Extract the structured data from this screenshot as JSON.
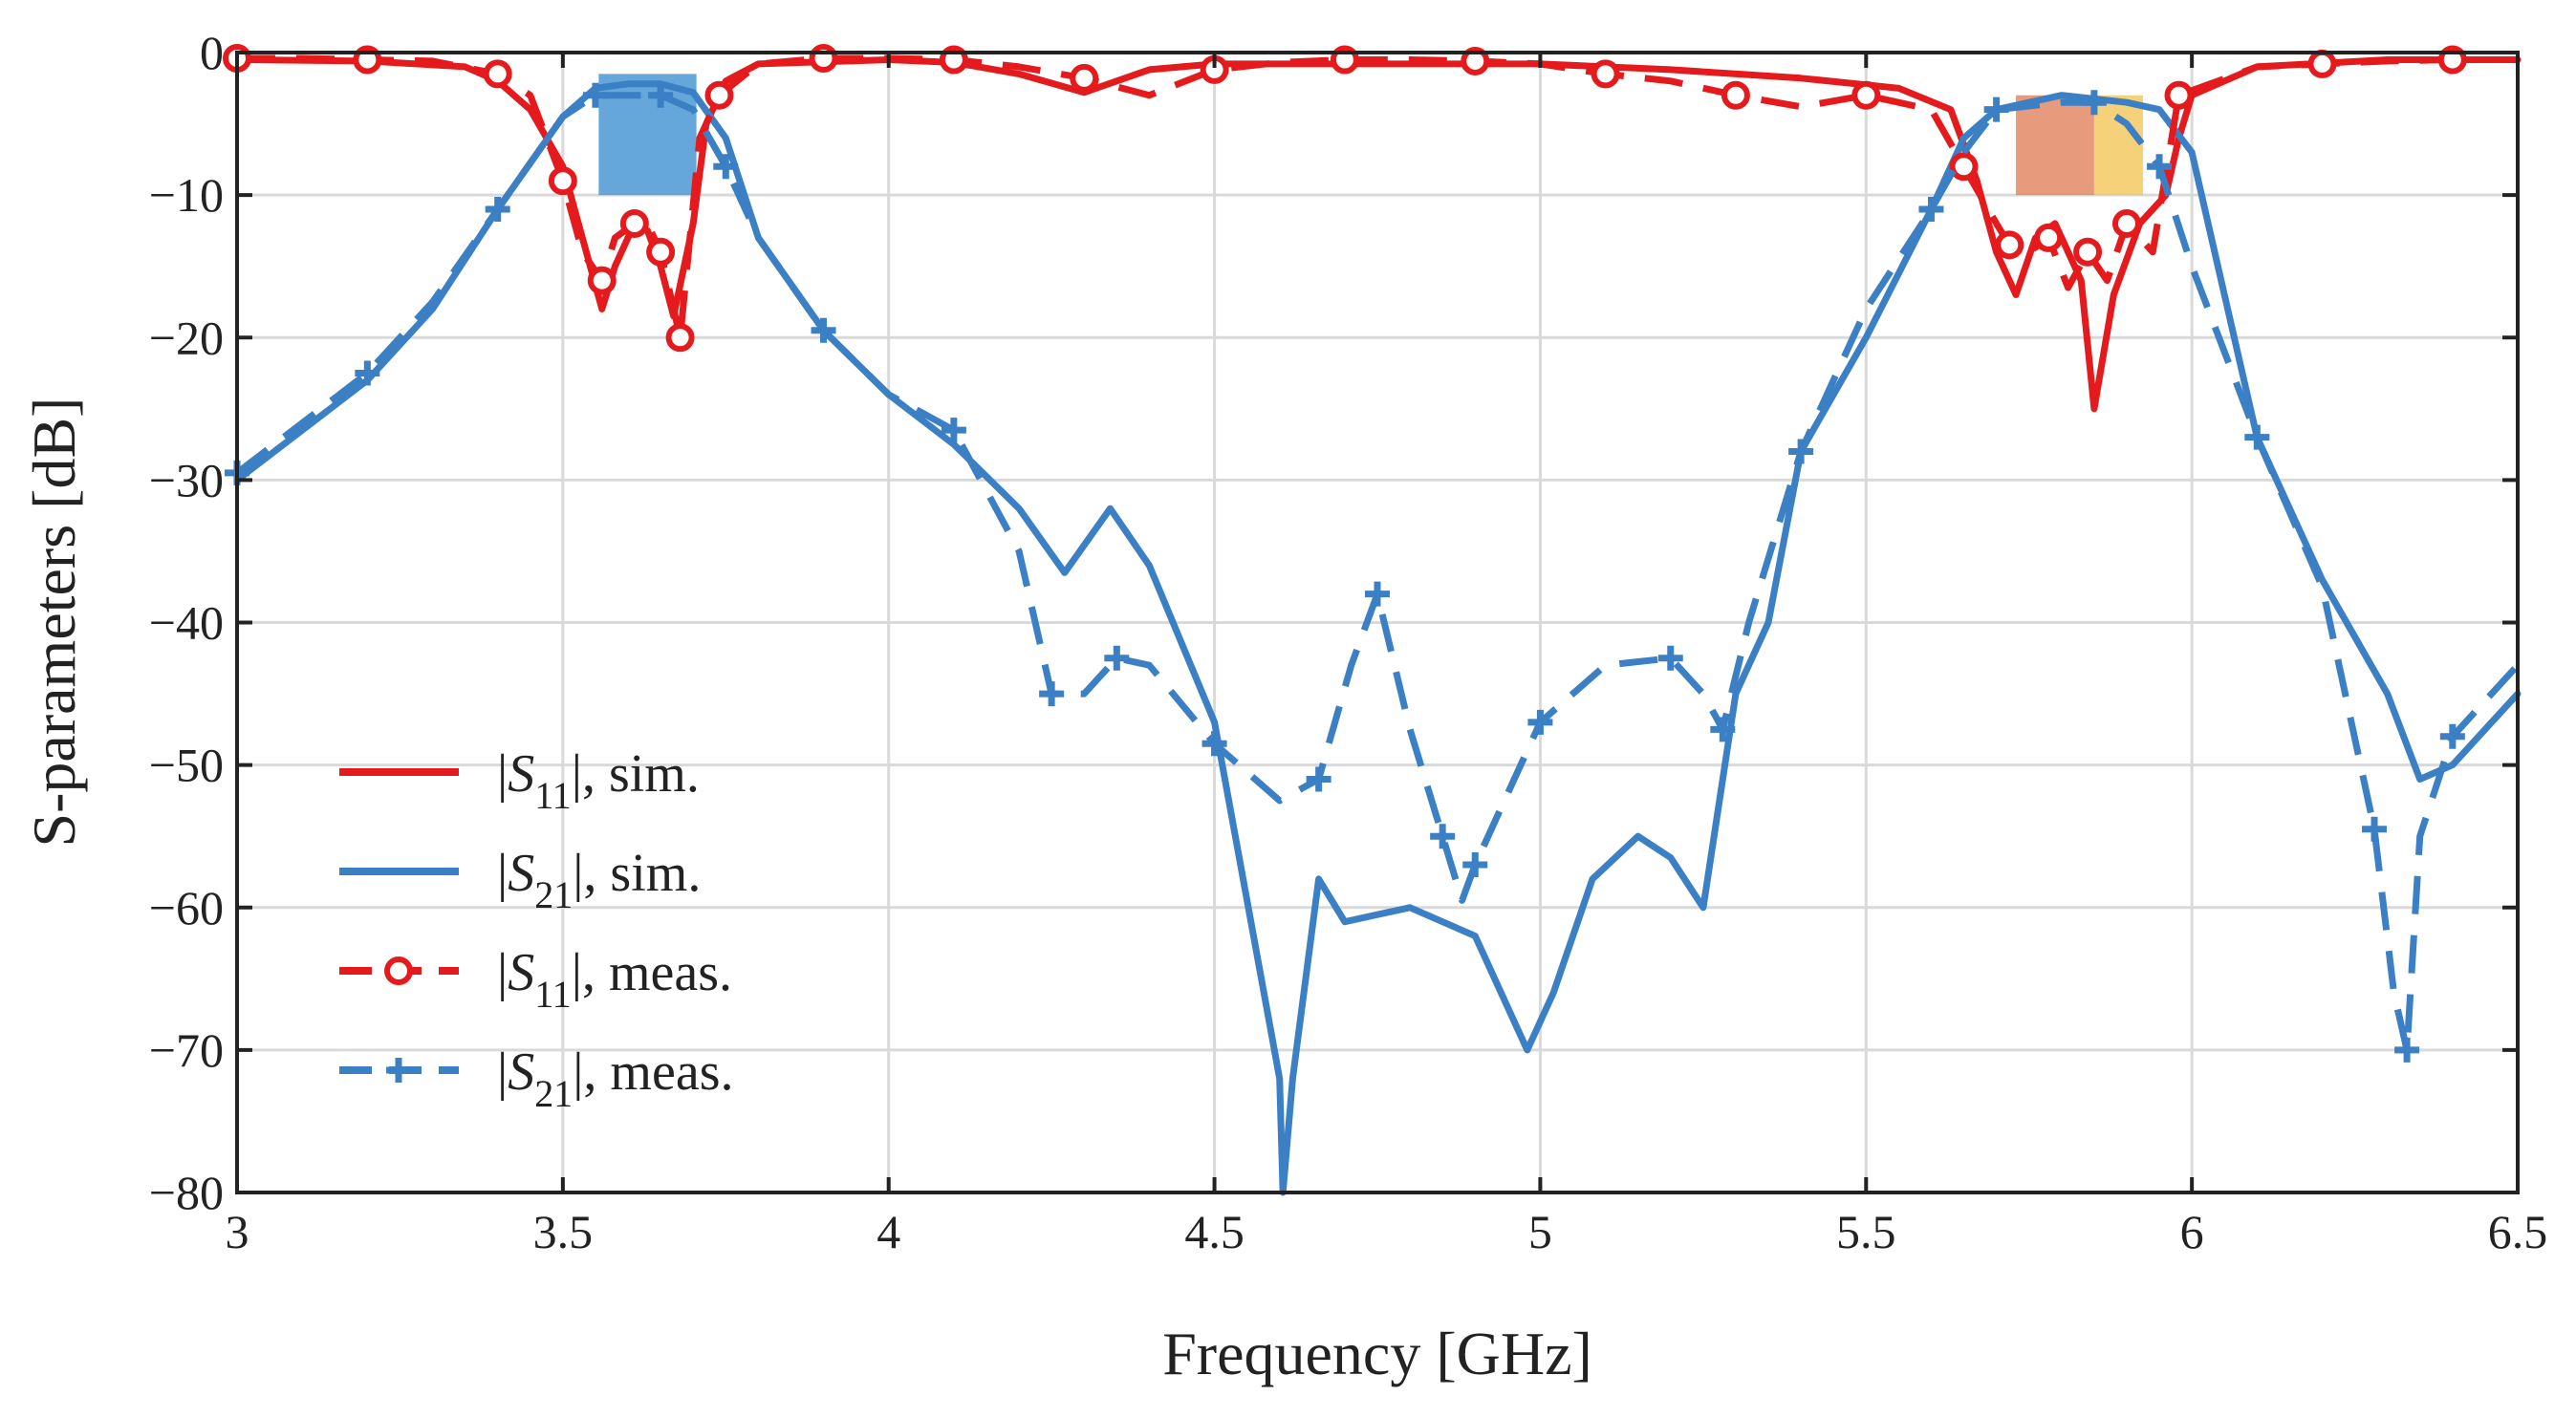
{
  "chart_data": {
    "type": "line",
    "title": "",
    "xlabel": "Frequency [GHz]",
    "ylabel": "S-parameters [dB]",
    "xlim": [
      3,
      6.5
    ],
    "ylim": [
      -80,
      0
    ],
    "x_ticks": [
      3,
      3.5,
      4,
      4.5,
      5,
      5.5,
      6,
      6.5
    ],
    "x_tick_labels": [
      "3",
      "3.5",
      "4",
      "4.5",
      "5",
      "5.5",
      "6",
      "6.5"
    ],
    "y_ticks": [
      0,
      -10,
      -20,
      -30,
      -40,
      -50,
      -60,
      -70,
      -80
    ],
    "y_tick_labels": [
      "0",
      "−10",
      "−20",
      "−30",
      "−40",
      "−50",
      "−60",
      "−70",
      "−80"
    ],
    "grid": true,
    "legend_position": "left-bottom",
    "shaded_bands": [
      {
        "x": [
          3.555,
          3.705
        ],
        "y": [
          -10,
          -1.5
        ],
        "color": "#4a98d3",
        "opacity": 0.85
      },
      {
        "x": [
          5.73,
          5.85
        ],
        "y": [
          -10,
          -3
        ],
        "color": "#e07a50",
        "opacity": 0.75
      },
      {
        "x": [
          5.85,
          5.925
        ],
        "y": [
          -10,
          -3
        ],
        "color": "#f2c14e",
        "opacity": 0.75
      }
    ],
    "series": [
      {
        "name": "|S11|, sim.",
        "legend_base": "S",
        "legend_sub": "11",
        "legend_suffix": ", sim.",
        "color": "#e41a1c",
        "style": "solid",
        "marker": "none",
        "points": [
          [
            3,
            -0.5
          ],
          [
            3.2,
            -0.6
          ],
          [
            3.35,
            -1
          ],
          [
            3.4,
            -2
          ],
          [
            3.45,
            -4
          ],
          [
            3.5,
            -8
          ],
          [
            3.53,
            -13
          ],
          [
            3.56,
            -18
          ],
          [
            3.58,
            -15
          ],
          [
            3.61,
            -12
          ],
          [
            3.63,
            -12.5
          ],
          [
            3.65,
            -15
          ],
          [
            3.67,
            -18.5
          ],
          [
            3.7,
            -12
          ],
          [
            3.72,
            -5
          ],
          [
            3.75,
            -2
          ],
          [
            3.8,
            -0.8
          ],
          [
            4.0,
            -0.5
          ],
          [
            4.1,
            -0.7
          ],
          [
            4.2,
            -1.5
          ],
          [
            4.3,
            -2.8
          ],
          [
            4.35,
            -2
          ],
          [
            4.4,
            -1.2
          ],
          [
            4.5,
            -0.8
          ],
          [
            5.0,
            -0.8
          ],
          [
            5.2,
            -1.2
          ],
          [
            5.4,
            -1.8
          ],
          [
            5.55,
            -2.5
          ],
          [
            5.63,
            -4
          ],
          [
            5.67,
            -9
          ],
          [
            5.7,
            -14
          ],
          [
            5.73,
            -17
          ],
          [
            5.76,
            -13
          ],
          [
            5.79,
            -12
          ],
          [
            5.83,
            -16
          ],
          [
            5.85,
            -25
          ],
          [
            5.88,
            -17
          ],
          [
            5.92,
            -12
          ],
          [
            5.96,
            -10
          ],
          [
            5.98,
            -6
          ],
          [
            6.0,
            -3
          ],
          [
            6.1,
            -1
          ],
          [
            6.3,
            -0.5
          ],
          [
            6.5,
            -0.5
          ]
        ]
      },
      {
        "name": "|S21|, sim.",
        "legend_base": "S",
        "legend_sub": "21",
        "legend_suffix": ", sim.",
        "color": "#3b7fc4",
        "style": "solid",
        "marker": "none",
        "points": [
          [
            3,
            -30
          ],
          [
            3.1,
            -26.5
          ],
          [
            3.2,
            -23
          ],
          [
            3.3,
            -18
          ],
          [
            3.4,
            -11
          ],
          [
            3.5,
            -4.5
          ],
          [
            3.55,
            -2.5
          ],
          [
            3.6,
            -2.2
          ],
          [
            3.65,
            -2.2
          ],
          [
            3.7,
            -2.8
          ],
          [
            3.75,
            -6
          ],
          [
            3.8,
            -13
          ],
          [
            3.9,
            -19.5
          ],
          [
            4.0,
            -24
          ],
          [
            4.1,
            -27.5
          ],
          [
            4.2,
            -32
          ],
          [
            4.27,
            -36.5
          ],
          [
            4.34,
            -32
          ],
          [
            4.4,
            -36
          ],
          [
            4.5,
            -47
          ],
          [
            4.6,
            -72
          ],
          [
            4.605,
            -80
          ],
          [
            4.62,
            -72
          ],
          [
            4.66,
            -58
          ],
          [
            4.7,
            -61
          ],
          [
            4.75,
            -60.5
          ],
          [
            4.8,
            -60
          ],
          [
            4.9,
            -62
          ],
          [
            4.98,
            -70
          ],
          [
            5.02,
            -66
          ],
          [
            5.08,
            -58
          ],
          [
            5.15,
            -55
          ],
          [
            5.2,
            -56.5
          ],
          [
            5.25,
            -60
          ],
          [
            5.3,
            -45
          ],
          [
            5.35,
            -40
          ],
          [
            5.4,
            -28
          ],
          [
            5.5,
            -20
          ],
          [
            5.6,
            -11
          ],
          [
            5.65,
            -6
          ],
          [
            5.7,
            -4
          ],
          [
            5.8,
            -3
          ],
          [
            5.9,
            -3.5
          ],
          [
            5.95,
            -4
          ],
          [
            6.0,
            -7
          ],
          [
            6.05,
            -17
          ],
          [
            6.1,
            -27
          ],
          [
            6.2,
            -37
          ],
          [
            6.3,
            -45
          ],
          [
            6.35,
            -51
          ],
          [
            6.4,
            -50
          ],
          [
            6.5,
            -45
          ]
        ]
      },
      {
        "name": "|S11|, meas.",
        "legend_base": "S",
        "legend_sub": "11",
        "legend_suffix": ", meas.",
        "color": "#e41a1c",
        "style": "dashed",
        "marker": "circle",
        "points": [
          [
            3,
            -0.4
          ],
          [
            3.1,
            -0.4
          ],
          [
            3.2,
            -0.5
          ],
          [
            3.3,
            -0.6
          ],
          [
            3.4,
            -1.5
          ],
          [
            3.45,
            -3
          ],
          [
            3.5,
            -9
          ],
          [
            3.53,
            -14
          ],
          [
            3.56,
            -16
          ],
          [
            3.58,
            -13
          ],
          [
            3.61,
            -12
          ],
          [
            3.63,
            -12
          ],
          [
            3.65,
            -14
          ],
          [
            3.67,
            -18
          ],
          [
            3.68,
            -20
          ],
          [
            3.71,
            -6
          ],
          [
            3.74,
            -3
          ],
          [
            3.8,
            -0.8
          ],
          [
            3.9,
            -0.4
          ],
          [
            4.0,
            -0.4
          ],
          [
            4.1,
            -0.5
          ],
          [
            4.2,
            -1
          ],
          [
            4.3,
            -1.8
          ],
          [
            4.4,
            -3
          ],
          [
            4.5,
            -1.2
          ],
          [
            4.6,
            -0.7
          ],
          [
            4.7,
            -0.5
          ],
          [
            4.8,
            -0.5
          ],
          [
            4.9,
            -0.6
          ],
          [
            5.0,
            -0.8
          ],
          [
            5.1,
            -1.5
          ],
          [
            5.2,
            -2
          ],
          [
            5.3,
            -3
          ],
          [
            5.4,
            -3.8
          ],
          [
            5.5,
            -3
          ],
          [
            5.6,
            -4
          ],
          [
            5.65,
            -8
          ],
          [
            5.7,
            -12
          ],
          [
            5.72,
            -13.5
          ],
          [
            5.75,
            -14
          ],
          [
            5.78,
            -13
          ],
          [
            5.81,
            -16.5
          ],
          [
            5.84,
            -14
          ],
          [
            5.87,
            -16
          ],
          [
            5.9,
            -12
          ],
          [
            5.94,
            -14
          ],
          [
            5.98,
            -3
          ],
          [
            6.1,
            -1
          ],
          [
            6.2,
            -0.8
          ],
          [
            6.3,
            -0.6
          ],
          [
            6.4,
            -0.5
          ],
          [
            6.5,
            -0.5
          ]
        ]
      },
      {
        "name": "|S21|, meas.",
        "legend_base": "S",
        "legend_sub": "21",
        "legend_suffix": ", meas.",
        "color": "#3b7fc4",
        "style": "dashed",
        "marker": "plus",
        "points": [
          [
            3,
            -29.5
          ],
          [
            3.1,
            -26
          ],
          [
            3.2,
            -22.5
          ],
          [
            3.3,
            -17.5
          ],
          [
            3.4,
            -11
          ],
          [
            3.5,
            -4.5
          ],
          [
            3.55,
            -3
          ],
          [
            3.6,
            -3
          ],
          [
            3.65,
            -3
          ],
          [
            3.7,
            -4
          ],
          [
            3.75,
            -8
          ],
          [
            3.8,
            -13
          ],
          [
            3.9,
            -19.5
          ],
          [
            4.0,
            -24
          ],
          [
            4.1,
            -26.5
          ],
          [
            4.2,
            -35
          ],
          [
            4.25,
            -45
          ],
          [
            4.3,
            -45
          ],
          [
            4.35,
            -42.5
          ],
          [
            4.4,
            -43
          ],
          [
            4.5,
            -48.5
          ],
          [
            4.6,
            -52.5
          ],
          [
            4.66,
            -51
          ],
          [
            4.71,
            -43
          ],
          [
            4.75,
            -38
          ],
          [
            4.8,
            -47.5
          ],
          [
            4.85,
            -55
          ],
          [
            4.88,
            -59.5
          ],
          [
            4.9,
            -57
          ],
          [
            4.95,
            -52
          ],
          [
            5.0,
            -47
          ],
          [
            5.1,
            -43
          ],
          [
            5.2,
            -42.5
          ],
          [
            5.25,
            -45
          ],
          [
            5.28,
            -47.5
          ],
          [
            5.32,
            -40
          ],
          [
            5.4,
            -28
          ],
          [
            5.5,
            -18
          ],
          [
            5.6,
            -11
          ],
          [
            5.65,
            -7
          ],
          [
            5.7,
            -4
          ],
          [
            5.8,
            -3.5
          ],
          [
            5.85,
            -3.5
          ],
          [
            5.9,
            -5
          ],
          [
            5.95,
            -8
          ],
          [
            6.0,
            -15
          ],
          [
            6.1,
            -27
          ],
          [
            6.2,
            -37.5
          ],
          [
            6.28,
            -54.5
          ],
          [
            6.31,
            -66
          ],
          [
            6.33,
            -70
          ],
          [
            6.35,
            -55
          ],
          [
            6.4,
            -48
          ],
          [
            6.5,
            -43
          ]
        ]
      }
    ]
  }
}
